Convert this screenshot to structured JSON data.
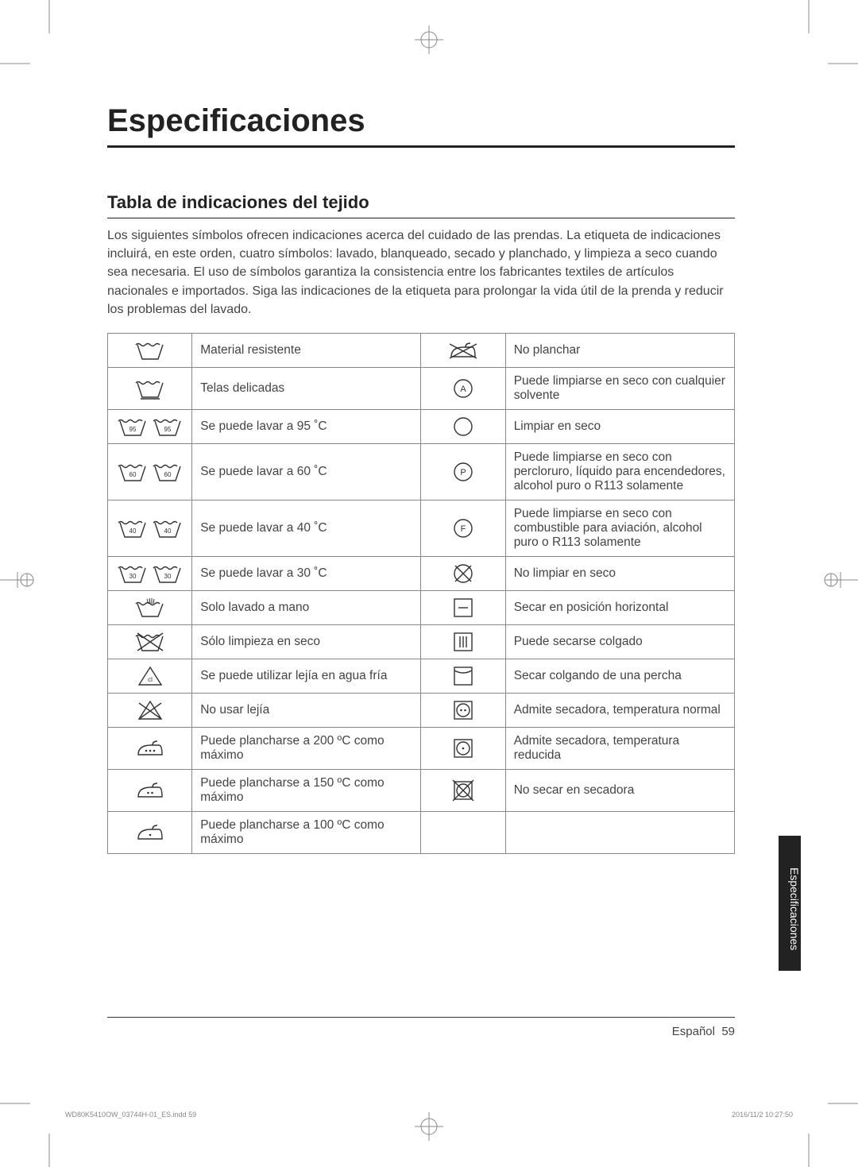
{
  "page": {
    "title": "Especificaciones",
    "section_title": "Tabla de indicaciones del tejido",
    "intro": "Los siguientes símbolos ofrecen indicaciones acerca del cuidado de las prendas. La etiqueta de indicaciones incluirá, en este orden, cuatro símbolos: lavado, blanqueado, secado y planchado, y limpieza a seco cuando sea necesaria. El uso de símbolos garantiza la consistencia entre los fabricantes textiles de artículos nacionales e importados. Siga las indicaciones de la etiqueta para prolongar la vida útil de la prenda y reducir los problemas del lavado.",
    "side_tab": "Especificaciones",
    "footer_lang": "Español",
    "footer_page": "59",
    "footer_file": "WD80K5410OW_03744H-01_ES.indd   59",
    "footer_date": "2016/11/2   10:27:50"
  },
  "rows": [
    {
      "l_icon": "wash-tub",
      "l_text": "Material resistente",
      "r_icon": "iron-cross",
      "r_text": "No planchar"
    },
    {
      "l_icon": "wash-tub-delicate",
      "l_text": "Telas delicadas",
      "r_icon": "circle-a",
      "r_text": "Puede limpiarse en seco con cualquier solvente"
    },
    {
      "l_icon": "wash-95",
      "l_text": "Se puede lavar a 95 ˚C",
      "r_icon": "circle-empty",
      "r_text": "Limpiar en seco"
    },
    {
      "l_icon": "wash-60",
      "l_text": "Se puede lavar a 60 ˚C",
      "r_icon": "circle-p",
      "r_text": "Puede limpiarse en seco con percloruro, líquido para encendedores, alcohol puro o R113 solamente"
    },
    {
      "l_icon": "wash-40",
      "l_text": "Se puede lavar a 40 ˚C",
      "r_icon": "circle-f",
      "r_text": "Puede limpiarse en seco con combustible para aviación, alcohol puro o R113 solamente"
    },
    {
      "l_icon": "wash-30",
      "l_text": "Se puede lavar a 30 ˚C",
      "r_icon": "circle-cross",
      "r_text": "No limpiar en seco"
    },
    {
      "l_icon": "hand-wash",
      "l_text": "Solo lavado a mano",
      "r_icon": "square-dash",
      "r_text": "Secar en posición horizontal"
    },
    {
      "l_icon": "tub-cross",
      "l_text": "Sólo limpieza en seco",
      "r_icon": "square-bars",
      "r_text": "Puede secarse colgado"
    },
    {
      "l_icon": "triangle-cl",
      "l_text": "Se puede utilizar lejía en agua fría",
      "r_icon": "square-curve",
      "r_text": "Secar colgando de una percha"
    },
    {
      "l_icon": "triangle-cross",
      "l_text": "No usar lejía",
      "r_icon": "tumble-2dot",
      "r_text": "Admite secadora, temperatura normal"
    },
    {
      "l_icon": "iron-3dot",
      "l_text": "Puede plancharse a 200 ºC como máximo",
      "r_icon": "tumble-1dot",
      "r_text": "Admite secadora, temperatura reducida"
    },
    {
      "l_icon": "iron-2dot",
      "l_text": "Puede plancharse a 150 ºC como máximo",
      "r_icon": "tumble-cross",
      "r_text": "No secar en secadora"
    },
    {
      "l_icon": "iron-1dot",
      "l_text": "Puede plancharse a 100 ºC como máximo",
      "r_icon": "",
      "r_text": ""
    }
  ],
  "style": {
    "stroke": "#333333",
    "fill": "none",
    "stroke_width": 1.4
  }
}
